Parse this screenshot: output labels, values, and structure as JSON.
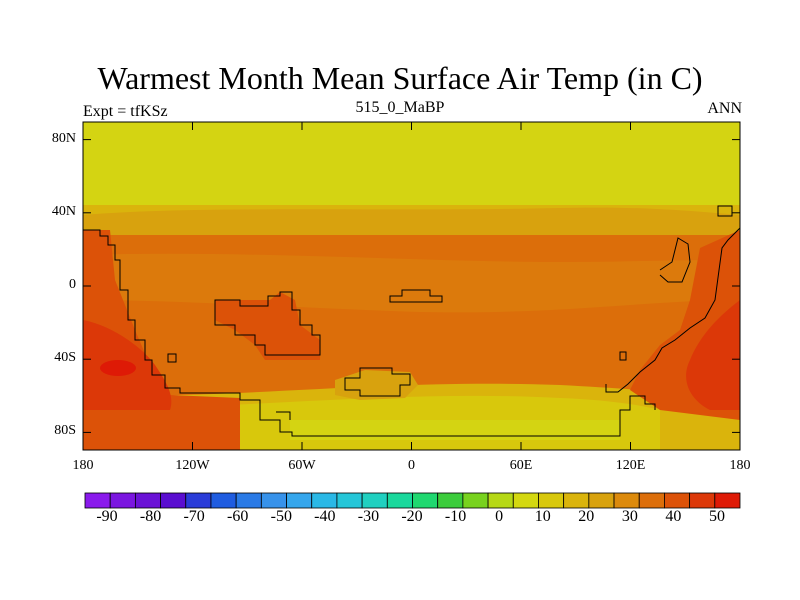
{
  "title": "Warmest Month Mean Surface Air Temp (in C)",
  "subtitle_left": "Expt = tfKSz",
  "subtitle_center": "515_0_MaBP",
  "subtitle_right": "ANN",
  "map": {
    "lat_ticks": [
      {
        "value": 80,
        "label": "80N"
      },
      {
        "value": 40,
        "label": "40N"
      },
      {
        "value": 0,
        "label": "0"
      },
      {
        "value": -40,
        "label": "40S"
      },
      {
        "value": -80,
        "label": "80S"
      }
    ],
    "lon_ticks": [
      {
        "value": -180,
        "label": "180"
      },
      {
        "value": -120,
        "label": "120W"
      },
      {
        "value": -60,
        "label": "60W"
      },
      {
        "value": 0,
        "label": "0"
      },
      {
        "value": 60,
        "label": "60E"
      },
      {
        "value": 120,
        "label": "120E"
      },
      {
        "value": 180,
        "label": "180"
      }
    ]
  },
  "colorbar": {
    "labels": [
      "-90",
      "-80",
      "-70",
      "-60",
      "-50",
      "-40",
      "-30",
      "-20",
      "-10",
      "0",
      "10",
      "20",
      "30",
      "40",
      "50"
    ],
    "colors": [
      "#8a1aec",
      "#7b16e0",
      "#6a12d6",
      "#5a0ed0",
      "#2a3cd8",
      "#1f5ce0",
      "#2a7ae6",
      "#3792ea",
      "#35a6ec",
      "#2ab8e6",
      "#25c6d8",
      "#20d0c0",
      "#1ad89c",
      "#20d870",
      "#3ccc3c",
      "#78d21e",
      "#b6d816",
      "#d4d810",
      "#d8c80c",
      "#dab40c",
      "#d8a20e",
      "#dc8a0c",
      "#dc6e0a",
      "#dc5208",
      "#dc3808",
      "#de1a06"
    ]
  }
}
